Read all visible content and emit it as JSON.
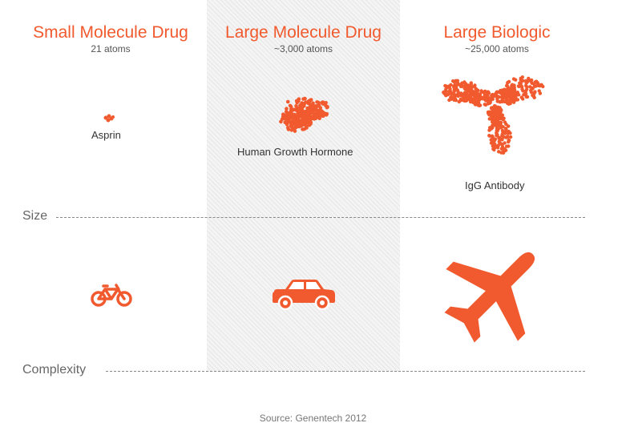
{
  "columns": [
    {
      "title": "Small Molecule Drug",
      "subtitle": "21 atoms",
      "example": "Asprin"
    },
    {
      "title": "Large Molecule Drug",
      "subtitle": "~3,000 atoms",
      "example": "Human Growth Hormone"
    },
    {
      "title": "Large Biologic",
      "subtitle": "~25,000 atoms",
      "example": "IgG Antibody"
    }
  ],
  "axes": {
    "size": "Size",
    "complexity": "Complexity"
  },
  "analogies": [
    {
      "icon": "bicycle-icon"
    },
    {
      "icon": "car-icon"
    },
    {
      "icon": "airplane-icon"
    }
  ],
  "source": "Source: Genentech 2012",
  "colors": {
    "accent": "#f15a2e",
    "hatch_band": "#f4f4f4"
  }
}
